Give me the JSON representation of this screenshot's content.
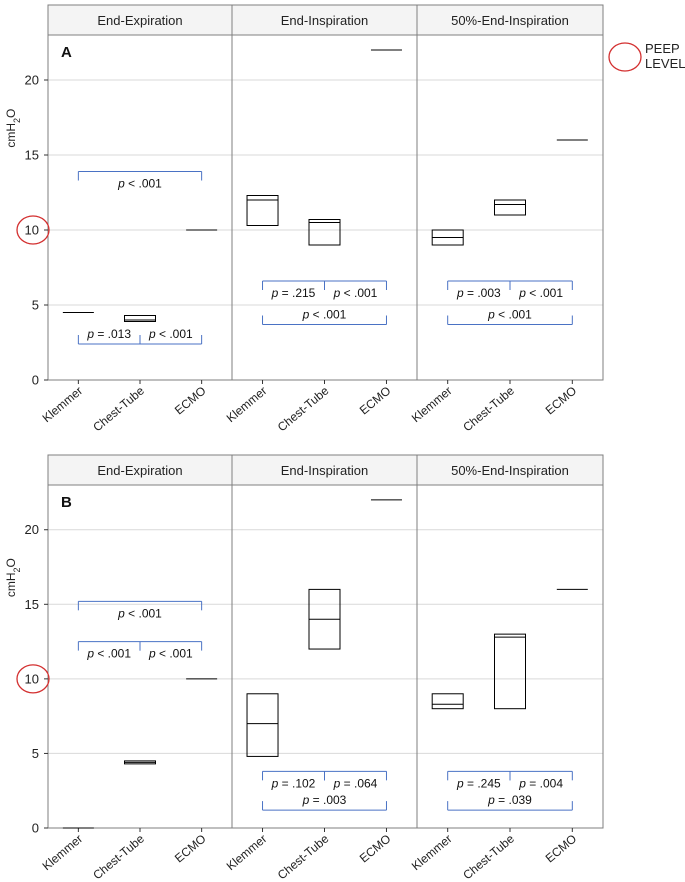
{
  "chart_data": [
    {
      "type": "box",
      "label": "A",
      "ylabel_base": "cmH",
      "ylabel_sub": "2",
      "ylabel_end": "O",
      "ylim": [
        0,
        23
      ],
      "yticks": [
        0,
        5,
        10,
        15,
        20
      ],
      "grid": true,
      "categories": [
        "Klemmer",
        "Chest-Tube",
        "ECMO"
      ],
      "panels": [
        {
          "title": "End-Expiration",
          "boxes": [
            {
              "category": "Klemmer",
              "q1": 4.5,
              "median": 4.5,
              "q3": 4.5
            },
            {
              "category": "Chest-Tube",
              "q1": 3.9,
              "median": 4.0,
              "q3": 4.3
            },
            {
              "category": "ECMO",
              "q1": 10.0,
              "median": 10.0,
              "q3": 10.0
            }
          ],
          "comparisons": [
            {
              "from": "Klemmer",
              "to": "Chest-Tube",
              "pair": "adjacent",
              "y": 2.4,
              "dir": "up",
              "text_p": "p",
              "text_v": " = .013"
            },
            {
              "from": "Chest-Tube",
              "to": "ECMO",
              "pair": "adjacent",
              "y": 2.4,
              "dir": "up",
              "text_p": "p",
              "text_v": " < .001"
            },
            {
              "from": "Klemmer",
              "to": "ECMO",
              "pair": "outer",
              "y": 13.9,
              "dir": "down",
              "text_p": "p",
              "text_v": " < .001"
            }
          ]
        },
        {
          "title": "End-Inspiration",
          "boxes": [
            {
              "category": "Klemmer",
              "q1": 10.3,
              "median": 12.0,
              "q3": 12.3
            },
            {
              "category": "Chest-Tube",
              "q1": 9.0,
              "median": 10.5,
              "q3": 10.7
            },
            {
              "category": "ECMO",
              "q1": 22.0,
              "median": 22.0,
              "q3": 22.0
            }
          ],
          "comparisons": [
            {
              "from": "Klemmer",
              "to": "Chest-Tube",
              "pair": "adjacent",
              "y": 6.6,
              "dir": "down",
              "text_p": "p",
              "text_v": " = .215"
            },
            {
              "from": "Chest-Tube",
              "to": "ECMO",
              "pair": "adjacent",
              "y": 6.6,
              "dir": "down",
              "text_p": "p",
              "text_v": " < .001"
            },
            {
              "from": "Klemmer",
              "to": "ECMO",
              "pair": "outer",
              "y": 3.7,
              "dir": "up",
              "text_p": "p",
              "text_v": " < .001"
            }
          ]
        },
        {
          "title": "50%-End-Inspiration",
          "boxes": [
            {
              "category": "Klemmer",
              "q1": 9.0,
              "median": 9.5,
              "q3": 10.0
            },
            {
              "category": "Chest-Tube",
              "q1": 11.0,
              "median": 11.7,
              "q3": 12.0
            },
            {
              "category": "ECMO",
              "q1": 16.0,
              "median": 16.0,
              "q3": 16.0
            }
          ],
          "comparisons": [
            {
              "from": "Klemmer",
              "to": "Chest-Tube",
              "pair": "adjacent",
              "y": 6.6,
              "dir": "down",
              "text_p": "p",
              "text_v": " = .003"
            },
            {
              "from": "Chest-Tube",
              "to": "ECMO",
              "pair": "adjacent",
              "y": 6.6,
              "dir": "down",
              "text_p": "p",
              "text_v": " < .001"
            },
            {
              "from": "Klemmer",
              "to": "ECMO",
              "pair": "outer",
              "y": 3.7,
              "dir": "up",
              "text_p": "p",
              "text_v": " < .001"
            }
          ]
        }
      ]
    },
    {
      "type": "box",
      "label": "B",
      "ylabel_base": "cmH",
      "ylabel_sub": "2",
      "ylabel_end": "O",
      "ylim": [
        0,
        23
      ],
      "yticks": [
        0,
        5,
        10,
        15,
        20
      ],
      "grid": true,
      "categories": [
        "Klemmer",
        "Chest-Tube",
        "ECMO"
      ],
      "panels": [
        {
          "title": "End-Expiration",
          "boxes": [
            {
              "category": "Klemmer",
              "q1": 0.0,
              "median": 0.0,
              "q3": 0.0
            },
            {
              "category": "Chest-Tube",
              "q1": 4.3,
              "median": 4.4,
              "q3": 4.5
            },
            {
              "category": "ECMO",
              "q1": 10.0,
              "median": 10.0,
              "q3": 10.0
            }
          ],
          "comparisons": [
            {
              "from": "Klemmer",
              "to": "Chest-Tube",
              "pair": "adjacent",
              "y": 12.5,
              "dir": "down",
              "text_p": "p",
              "text_v": " < .001"
            },
            {
              "from": "Chest-Tube",
              "to": "ECMO",
              "pair": "adjacent",
              "y": 12.5,
              "dir": "down",
              "text_p": "p",
              "text_v": " < .001"
            },
            {
              "from": "Klemmer",
              "to": "ECMO",
              "pair": "outer",
              "y": 15.2,
              "dir": "down",
              "text_p": "p",
              "text_v": " < .001"
            }
          ]
        },
        {
          "title": "End-Inspiration",
          "boxes": [
            {
              "category": "Klemmer",
              "q1": 4.8,
              "median": 7.0,
              "q3": 9.0
            },
            {
              "category": "Chest-Tube",
              "q1": 12.0,
              "median": 14.0,
              "q3": 16.0
            },
            {
              "category": "ECMO",
              "q1": 22.0,
              "median": 22.0,
              "q3": 22.0
            }
          ],
          "comparisons": [
            {
              "from": "Klemmer",
              "to": "Chest-Tube",
              "pair": "adjacent",
              "y": 3.8,
              "dir": "down",
              "text_p": "p",
              "text_v": " = .102"
            },
            {
              "from": "Chest-Tube",
              "to": "ECMO",
              "pair": "adjacent",
              "y": 3.8,
              "dir": "down",
              "text_p": "p",
              "text_v": " = .064"
            },
            {
              "from": "Klemmer",
              "to": "ECMO",
              "pair": "outer",
              "y": 1.2,
              "dir": "up",
              "text_p": "p",
              "text_v": " = .003"
            }
          ]
        },
        {
          "title": "50%-End-Inspiration",
          "boxes": [
            {
              "category": "Klemmer",
              "q1": 8.0,
              "median": 8.3,
              "q3": 9.0
            },
            {
              "category": "Chest-Tube",
              "q1": 8.0,
              "median": 12.8,
              "q3": 13.0
            },
            {
              "category": "ECMO",
              "q1": 16.0,
              "median": 16.0,
              "q3": 16.0
            }
          ],
          "comparisons": [
            {
              "from": "Klemmer",
              "to": "Chest-Tube",
              "pair": "adjacent",
              "y": 3.8,
              "dir": "down",
              "text_p": "p",
              "text_v": " = .245"
            },
            {
              "from": "Chest-Tube",
              "to": "ECMO",
              "pair": "adjacent",
              "y": 3.8,
              "dir": "down",
              "text_p": "p",
              "text_v": " = .004"
            },
            {
              "from": "Klemmer",
              "to": "ECMO",
              "pair": "outer",
              "y": 1.2,
              "dir": "up",
              "text_p": "p",
              "text_v": " = .039"
            }
          ]
        }
      ]
    }
  ],
  "legend": {
    "line1": "PEEP",
    "line2": "LEVEL"
  },
  "highlight_tick": 10,
  "colors": {
    "bracket": "#4a72c4",
    "box": "#000000",
    "grid": "#d9d9d9",
    "frame": "#7f7f7f",
    "header_bg": "#f4f4f4",
    "circle": "#d32f2f"
  }
}
